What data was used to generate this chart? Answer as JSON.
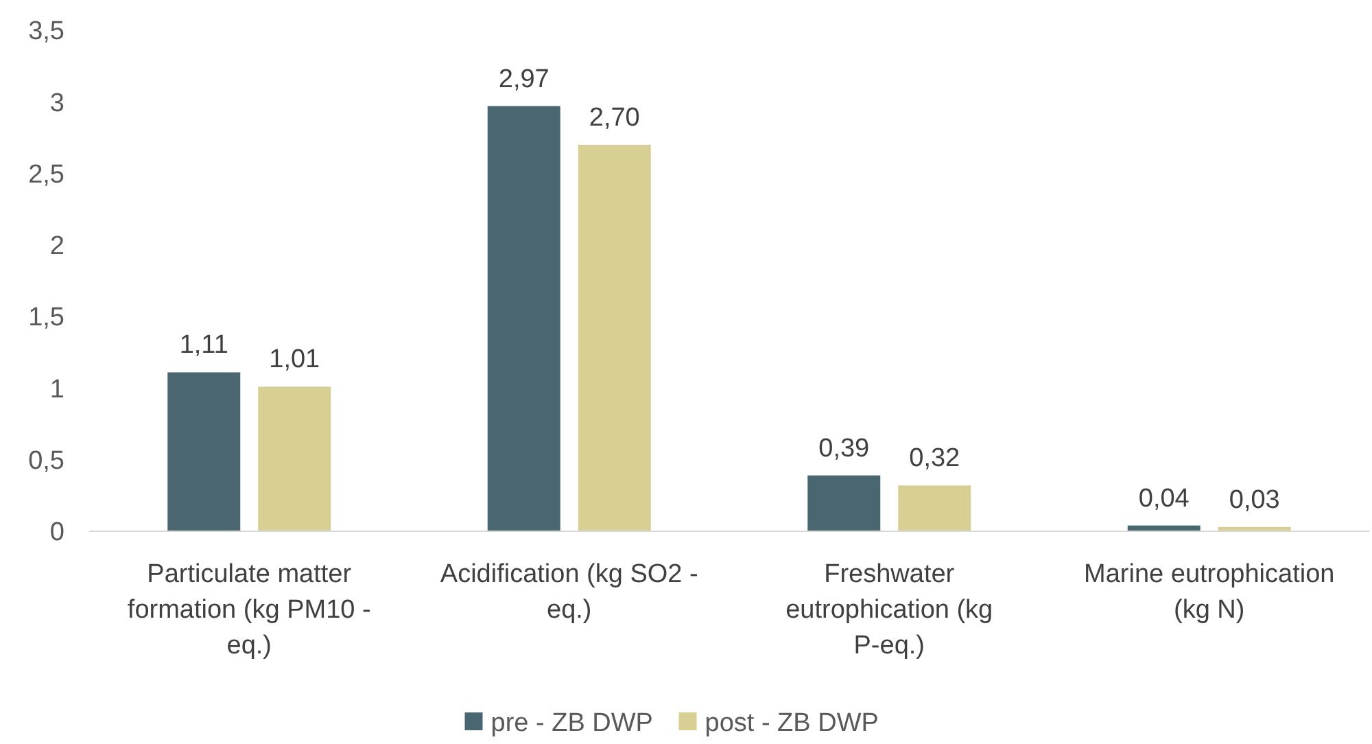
{
  "chart_data": {
    "type": "bar",
    "categories": [
      "Particulate matter formation (kg PM10 - eq.)",
      "Acidification (kg SO2 - eq.)",
      "Freshwater eutrophication (kg P-eq.)",
      "Marine eutrophication (kg N)"
    ],
    "series": [
      {
        "name": "pre - ZB DWP",
        "color": "#4a6670",
        "values": [
          1.11,
          2.97,
          0.39,
          0.04
        ],
        "value_labels": [
          "1,11",
          "2,97",
          "0,39",
          "0,04"
        ]
      },
      {
        "name": "post - ZB DWP",
        "color": "#d8cf95",
        "values": [
          1.01,
          2.7,
          0.32,
          0.03
        ],
        "value_labels": [
          "1,01",
          "2,70",
          "0,32",
          "0,03"
        ]
      }
    ],
    "ylim": [
      0,
      3.5
    ],
    "yticks": [
      0,
      {
        "value": 0.5,
        "label": "0,5"
      },
      1,
      {
        "value": 1.5,
        "label": "1,5"
      },
      2,
      {
        "value": 2.5,
        "label": "2,5"
      },
      3,
      {
        "value": 3.5,
        "label": "3,5"
      }
    ],
    "legend": "bottom"
  }
}
